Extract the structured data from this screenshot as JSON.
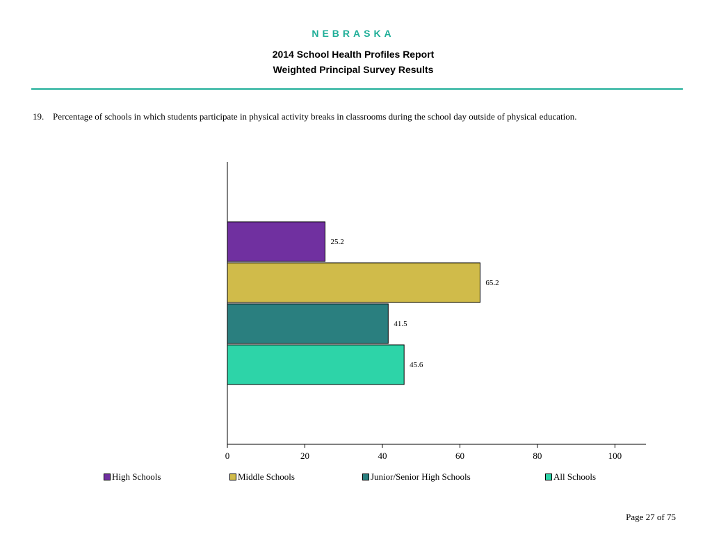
{
  "header": {
    "state": "NEBRASKA",
    "report_title": "2014 School Health Profiles Report",
    "report_subtitle": "Weighted Principal Survey Results"
  },
  "question": {
    "number": "19.",
    "text": "Percentage of schools in which students participate in physical activity breaks in classrooms during the school day outside of physical education."
  },
  "chart_data": {
    "type": "bar",
    "orientation": "horizontal",
    "categories": [
      "High Schools",
      "Middle Schools",
      "Junior/Senior High Schools",
      "All Schools"
    ],
    "values": [
      25.2,
      65.2,
      41.5,
      45.6
    ],
    "data_labels": [
      "25.2",
      "65.2",
      "41.5",
      "45.6"
    ],
    "colors": [
      "#7030a0",
      "#d0bb4a",
      "#2a7f7f",
      "#2dd4a8"
    ],
    "xlim": [
      0,
      108
    ],
    "xticks": [
      0,
      20,
      40,
      60,
      80,
      100
    ],
    "xtick_labels": [
      "0",
      "20",
      "40",
      "60",
      "80",
      "100"
    ],
    "legend_position": "bottom",
    "grid": false
  },
  "footer": {
    "page": "Page 27 of 75"
  }
}
